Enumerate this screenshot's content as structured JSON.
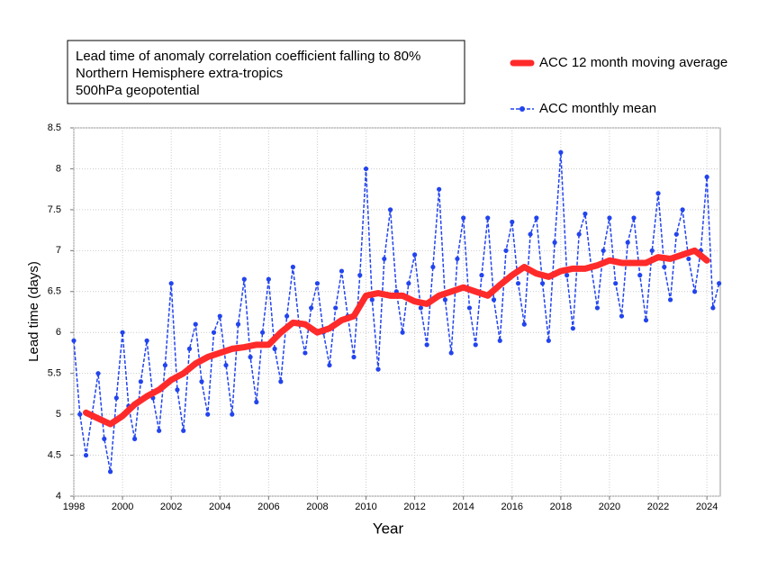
{
  "chart_data": {
    "type": "line",
    "title": [
      "Lead time of anomaly correlation coefficient falling to 80%",
      "Northern Hemisphere extra-tropics",
      "500hPa geopotential"
    ],
    "xlabel": "Year",
    "ylabel": "Lead time (days)",
    "xlim": [
      1998,
      2024.55
    ],
    "ylim": [
      4,
      8.5
    ],
    "xticks": [
      1998,
      2000,
      2002,
      2004,
      2006,
      2008,
      2010,
      2012,
      2014,
      2016,
      2018,
      2020,
      2022,
      2024
    ],
    "yticks": [
      4,
      4.5,
      5,
      5.5,
      6,
      6.5,
      7,
      7.5,
      8,
      8.5
    ],
    "grid": true,
    "legend": "top-right",
    "series": [
      {
        "name": "ACC 12 month moving average",
        "color": "#ff2a2a",
        "style": "thick",
        "x": [
          1998.5,
          1999,
          1999.5,
          2000,
          2000.5,
          2001,
          2001.5,
          2002,
          2002.5,
          2003,
          2003.5,
          2004,
          2004.5,
          2005,
          2005.5,
          2006,
          2006.5,
          2007,
          2007.5,
          2008,
          2008.5,
          2009,
          2009.5,
          2010,
          2010.5,
          2011,
          2011.5,
          2012,
          2012.5,
          2013,
          2013.5,
          2014,
          2014.5,
          2015,
          2015.5,
          2016,
          2016.5,
          2017,
          2017.5,
          2018,
          2018.5,
          2019,
          2019.5,
          2020,
          2020.5,
          2021,
          2021.5,
          2022,
          2022.5,
          2023,
          2023.5,
          2024
        ],
        "values": [
          5.02,
          4.95,
          4.88,
          4.98,
          5.12,
          5.22,
          5.3,
          5.42,
          5.5,
          5.62,
          5.7,
          5.75,
          5.8,
          5.82,
          5.85,
          5.85,
          6.0,
          6.12,
          6.1,
          6.0,
          6.05,
          6.15,
          6.2,
          6.45,
          6.48,
          6.45,
          6.45,
          6.38,
          6.35,
          6.45,
          6.5,
          6.55,
          6.5,
          6.45,
          6.58,
          6.7,
          6.8,
          6.72,
          6.68,
          6.75,
          6.78,
          6.78,
          6.82,
          6.88,
          6.85,
          6.85,
          6.85,
          6.92,
          6.9,
          6.95,
          7.0,
          6.88
        ]
      },
      {
        "name": "ACC monthly mean",
        "color": "#2244ee",
        "style": "dashed-dots",
        "x": [
          1998,
          1998.25,
          1998.5,
          1998.75,
          1999,
          1999.25,
          1999.5,
          1999.75,
          2000,
          2000.25,
          2000.5,
          2000.75,
          2001,
          2001.25,
          2001.5,
          2001.75,
          2002,
          2002.25,
          2002.5,
          2002.75,
          2003,
          2003.25,
          2003.5,
          2003.75,
          2004,
          2004.25,
          2004.5,
          2004.75,
          2005,
          2005.25,
          2005.5,
          2005.75,
          2006,
          2006.25,
          2006.5,
          2006.75,
          2007,
          2007.25,
          2007.5,
          2007.75,
          2008,
          2008.25,
          2008.5,
          2008.75,
          2009,
          2009.25,
          2009.5,
          2009.75,
          2010,
          2010.25,
          2010.5,
          2010.75,
          2011,
          2011.25,
          2011.5,
          2011.75,
          2012,
          2012.25,
          2012.5,
          2012.75,
          2013,
          2013.25,
          2013.5,
          2013.75,
          2014,
          2014.25,
          2014.5,
          2014.75,
          2015,
          2015.25,
          2015.5,
          2015.75,
          2016,
          2016.25,
          2016.5,
          2016.75,
          2017,
          2017.25,
          2017.5,
          2017.75,
          2018,
          2018.25,
          2018.5,
          2018.75,
          2019,
          2019.25,
          2019.5,
          2019.75,
          2020,
          2020.25,
          2020.5,
          2020.75,
          2021,
          2021.25,
          2021.5,
          2021.75,
          2022,
          2022.25,
          2022.5,
          2022.75,
          2023,
          2023.25,
          2023.5,
          2023.75,
          2024,
          2024.25,
          2024.5
        ],
        "values": [
          5.9,
          5.0,
          4.5,
          5.0,
          5.5,
          4.7,
          4.3,
          5.2,
          6.0,
          5.1,
          4.7,
          5.4,
          5.9,
          5.2,
          4.8,
          5.6,
          6.6,
          5.3,
          4.8,
          5.8,
          6.1,
          5.4,
          5.0,
          6.0,
          6.2,
          5.6,
          5.0,
          6.1,
          6.65,
          5.7,
          5.15,
          6.0,
          6.65,
          5.8,
          5.4,
          6.2,
          6.8,
          6.1,
          5.75,
          6.3,
          6.6,
          6.0,
          5.6,
          6.3,
          6.75,
          6.2,
          5.7,
          6.7,
          8.0,
          6.4,
          5.55,
          6.9,
          7.5,
          6.5,
          6.0,
          6.6,
          6.95,
          6.3,
          5.85,
          6.8,
          7.75,
          6.4,
          5.75,
          6.9,
          7.4,
          6.3,
          5.85,
          6.7,
          7.4,
          6.4,
          5.9,
          7.0,
          7.35,
          6.6,
          6.1,
          7.2,
          7.4,
          6.6,
          5.9,
          7.1,
          8.2,
          6.7,
          6.05,
          7.2,
          7.45,
          6.8,
          6.3,
          7.0,
          7.4,
          6.6,
          6.2,
          7.1,
          7.4,
          6.7,
          6.15,
          7.0,
          7.7,
          6.8,
          6.4,
          7.2,
          7.5,
          6.9,
          6.5,
          7.0,
          7.9,
          6.3,
          6.6
        ]
      }
    ]
  }
}
